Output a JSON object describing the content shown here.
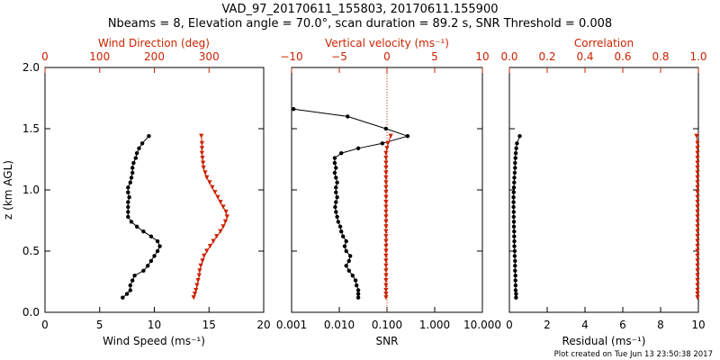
{
  "title": {
    "line1": "VAD_97_20170611_155803, 20170611.155900",
    "line2": "Nbeams = 8, Elevation angle = 70.0°, scan duration = 89.2 s, SNR Threshold = 0.008"
  },
  "footer": "Plot created on Tue Jun 13 23:50:38 2017",
  "colors": {
    "black": "#000000",
    "red": "#cc2200"
  },
  "chart_data": [
    {
      "type": "line",
      "name": "wind-panel",
      "ylabel": "z (km AGL)",
      "ylim": [
        0.0,
        2.0
      ],
      "yticks": [
        "0.0",
        "0.5",
        "1.0",
        "1.5",
        "2.0"
      ],
      "bottom_axis": {
        "label": "Wind Speed (ms⁻¹)",
        "lim": [
          0,
          20
        ],
        "ticks": [
          "0",
          "5",
          "10",
          "15",
          "20"
        ]
      },
      "top_axis": {
        "label": "Wind Direction (deg)",
        "lim": [
          0,
          400
        ],
        "ticks": [
          "0",
          "100",
          "200",
          "300"
        ]
      },
      "series": [
        {
          "name": "Wind Speed",
          "axis": "bottom",
          "color": "#000000",
          "marker": "circle",
          "z": [
            0.12,
            0.15,
            0.18,
            0.22,
            0.26,
            0.3,
            0.34,
            0.38,
            0.42,
            0.46,
            0.5,
            0.54,
            0.58,
            0.62,
            0.66,
            0.7,
            0.74,
            0.78,
            0.82,
            0.86,
            0.9,
            0.94,
            0.98,
            1.02,
            1.06,
            1.1,
            1.14,
            1.18,
            1.22,
            1.26,
            1.3,
            1.34,
            1.38,
            1.44
          ],
          "values": [
            7.1,
            7.5,
            7.8,
            7.8,
            8.0,
            8.2,
            9.0,
            9.4,
            9.7,
            10.0,
            10.3,
            10.5,
            10.3,
            9.7,
            9.0,
            8.4,
            7.9,
            7.6,
            7.6,
            7.6,
            7.6,
            7.7,
            7.6,
            7.6,
            7.8,
            7.9,
            8.0,
            8.0,
            8.1,
            8.3,
            8.4,
            8.6,
            8.9,
            9.5
          ]
        },
        {
          "name": "Wind Direction",
          "axis": "top",
          "color": "#cc2200",
          "marker": "triangle",
          "z": [
            0.12,
            0.15,
            0.18,
            0.22,
            0.26,
            0.3,
            0.34,
            0.38,
            0.42,
            0.46,
            0.5,
            0.54,
            0.58,
            0.62,
            0.66,
            0.7,
            0.74,
            0.78,
            0.82,
            0.86,
            0.9,
            0.94,
            0.98,
            1.02,
            1.06,
            1.1,
            1.14,
            1.18,
            1.22,
            1.26,
            1.3,
            1.34,
            1.38,
            1.44
          ],
          "values": [
            272,
            274,
            276,
            278,
            280,
            282,
            283,
            285,
            288,
            291,
            296,
            302,
            308,
            314,
            321,
            326,
            330,
            333,
            331,
            326,
            321,
            316,
            311,
            306,
            301,
            296,
            293,
            290,
            289,
            288,
            287,
            287,
            287,
            286
          ]
        }
      ]
    },
    {
      "type": "line",
      "name": "snr-vv-panel",
      "ylim": [
        0.0,
        2.0
      ],
      "bottom_axis": {
        "label": "SNR",
        "scale": "log",
        "lim": [
          0.001,
          10.0
        ],
        "ticks": [
          "0.001",
          "0.010",
          "0.100",
          "1.000",
          "10.000"
        ]
      },
      "top_axis": {
        "label": "Vertical velocity (ms⁻¹)",
        "lim": [
          -10,
          10
        ],
        "ticks": [
          "−10",
          "−5",
          "0",
          "5",
          "10"
        ]
      },
      "reference_line": {
        "axis": "top",
        "value": 0
      },
      "series": [
        {
          "name": "SNR",
          "axis": "bottom",
          "color": "#000000",
          "marker": "circle",
          "z": [
            0.12,
            0.15,
            0.18,
            0.22,
            0.26,
            0.3,
            0.34,
            0.38,
            0.42,
            0.46,
            0.5,
            0.54,
            0.58,
            0.62,
            0.66,
            0.7,
            0.74,
            0.78,
            0.82,
            0.86,
            0.9,
            0.94,
            0.98,
            1.02,
            1.06,
            1.1,
            1.14,
            1.18,
            1.22,
            1.26,
            1.3,
            1.34,
            1.38,
            1.44,
            1.5,
            1.6,
            1.66
          ],
          "values": [
            0.025,
            0.025,
            0.025,
            0.023,
            0.022,
            0.019,
            0.016,
            0.014,
            0.016,
            0.017,
            0.014,
            0.013,
            0.014,
            0.012,
            0.011,
            0.0105,
            0.0095,
            0.009,
            0.0085,
            0.0082,
            0.0085,
            0.009,
            0.0085,
            0.0085,
            0.009,
            0.0085,
            0.008,
            0.0085,
            0.008,
            0.008,
            0.011,
            0.025,
            0.08,
            0.27,
            0.095,
            0.015,
            0.0011
          ]
        },
        {
          "name": "Vertical velocity",
          "axis": "top",
          "color": "#cc2200",
          "marker": "triangle",
          "z": [
            0.12,
            0.15,
            0.18,
            0.22,
            0.26,
            0.3,
            0.34,
            0.38,
            0.42,
            0.46,
            0.5,
            0.54,
            0.58,
            0.62,
            0.66,
            0.7,
            0.74,
            0.78,
            0.82,
            0.86,
            0.9,
            0.94,
            0.98,
            1.02,
            1.06,
            1.1,
            1.14,
            1.18,
            1.22,
            1.26,
            1.3,
            1.34,
            1.38,
            1.44
          ],
          "values": [
            -0.1,
            -0.1,
            -0.1,
            -0.1,
            -0.1,
            -0.1,
            -0.1,
            -0.1,
            -0.1,
            -0.1,
            -0.1,
            -0.1,
            -0.1,
            -0.1,
            -0.1,
            -0.1,
            -0.1,
            -0.1,
            -0.1,
            -0.1,
            -0.1,
            -0.1,
            -0.1,
            -0.1,
            -0.1,
            -0.1,
            -0.1,
            -0.1,
            -0.1,
            -0.1,
            -0.1,
            0.0,
            0.1,
            0.4
          ]
        }
      ]
    },
    {
      "type": "line",
      "name": "residual-corr-panel",
      "ylim": [
        0.0,
        2.0
      ],
      "bottom_axis": {
        "label": "Residual (ms⁻¹)",
        "lim": [
          0,
          10
        ],
        "ticks": [
          "0",
          "2",
          "4",
          "6",
          "8",
          "10"
        ]
      },
      "top_axis": {
        "label": "Correlation",
        "lim": [
          0.0,
          1.0
        ],
        "ticks": [
          "0.0",
          "0.2",
          "0.4",
          "0.6",
          "0.8",
          "1.0"
        ]
      },
      "series": [
        {
          "name": "Residual",
          "axis": "bottom",
          "color": "#000000",
          "marker": "circle",
          "z": [
            0.12,
            0.15,
            0.18,
            0.22,
            0.26,
            0.3,
            0.34,
            0.38,
            0.42,
            0.46,
            0.5,
            0.54,
            0.58,
            0.62,
            0.66,
            0.7,
            0.74,
            0.78,
            0.82,
            0.86,
            0.9,
            0.94,
            0.98,
            1.02,
            1.06,
            1.1,
            1.14,
            1.18,
            1.22,
            1.26,
            1.3,
            1.34,
            1.38,
            1.44
          ],
          "values": [
            0.35,
            0.35,
            0.33,
            0.33,
            0.32,
            0.32,
            0.3,
            0.3,
            0.3,
            0.28,
            0.28,
            0.26,
            0.26,
            0.25,
            0.25,
            0.24,
            0.24,
            0.23,
            0.23,
            0.22,
            0.22,
            0.22,
            0.23,
            0.24,
            0.25,
            0.26,
            0.28,
            0.3,
            0.3,
            0.32,
            0.34,
            0.36,
            0.4,
            0.55
          ]
        },
        {
          "name": "Correlation",
          "axis": "top",
          "color": "#cc2200",
          "marker": "triangle",
          "z": [
            0.12,
            0.15,
            0.18,
            0.22,
            0.26,
            0.3,
            0.34,
            0.38,
            0.42,
            0.46,
            0.5,
            0.54,
            0.58,
            0.62,
            0.66,
            0.7,
            0.74,
            0.78,
            0.82,
            0.86,
            0.9,
            0.94,
            0.98,
            1.02,
            1.06,
            1.1,
            1.14,
            1.18,
            1.22,
            1.26,
            1.3,
            1.34,
            1.38,
            1.44
          ],
          "values": [
            0.995,
            0.995,
            0.995,
            0.995,
            0.995,
            0.995,
            0.995,
            0.995,
            0.995,
            0.995,
            0.995,
            0.995,
            0.995,
            0.995,
            0.995,
            0.995,
            0.995,
            0.995,
            0.995,
            0.995,
            0.995,
            0.995,
            0.995,
            0.995,
            0.995,
            0.995,
            0.995,
            0.995,
            0.995,
            0.995,
            0.995,
            0.995,
            0.995,
            0.99
          ]
        }
      ]
    }
  ]
}
